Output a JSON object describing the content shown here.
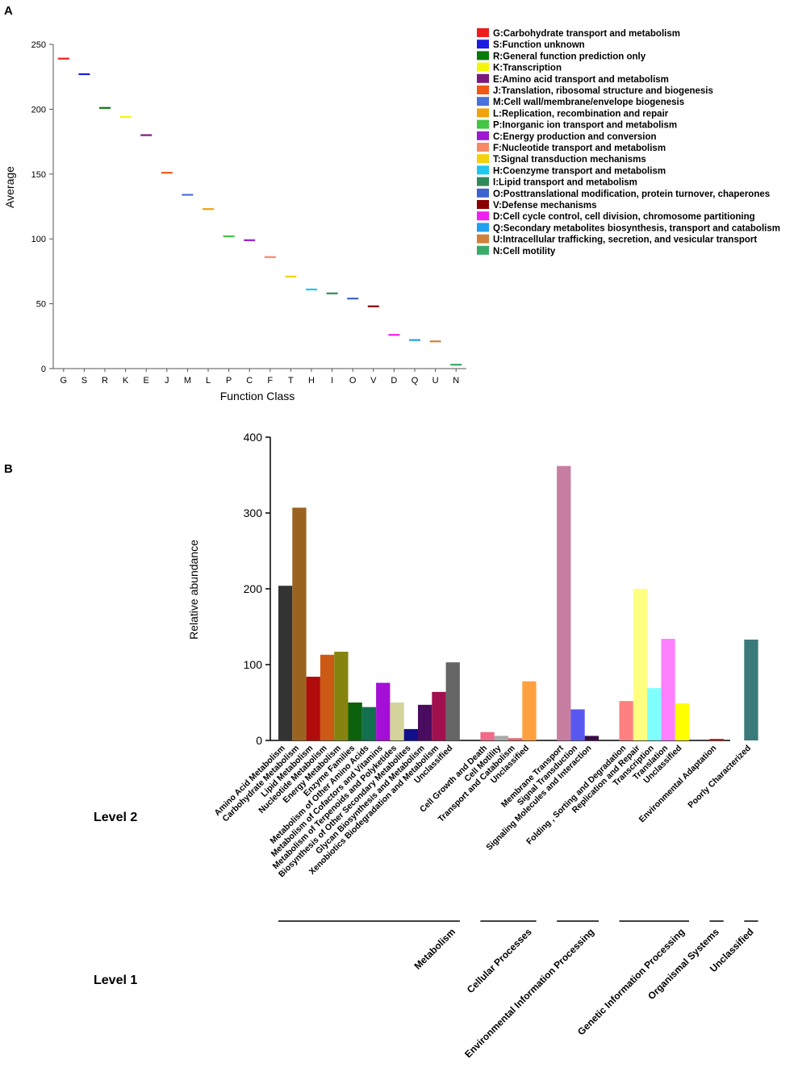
{
  "panel_labels": {
    "a": "A",
    "b": "B"
  },
  "chart_data": [
    {
      "type": "scatter",
      "panel": "A",
      "xlabel": "Function Class",
      "ylabel": "Average",
      "ylim": [
        0,
        250
      ],
      "yticks": [
        0,
        50,
        100,
        150,
        200,
        250
      ],
      "legend_position": "right",
      "categories": [
        "G",
        "S",
        "R",
        "K",
        "E",
        "J",
        "M",
        "L",
        "P",
        "C",
        "F",
        "T",
        "H",
        "I",
        "O",
        "V",
        "D",
        "Q",
        "U",
        "N"
      ],
      "values": [
        239,
        227,
        201,
        194,
        180,
        151,
        134,
        123,
        102,
        99,
        86,
        71,
        61,
        58,
        54,
        48,
        26,
        22,
        21,
        3
      ],
      "colors": [
        "#ee1c1c",
        "#1c1ce0",
        "#0a7a0a",
        "#f5f50a",
        "#7b1a7b",
        "#f05a14",
        "#4a72dc",
        "#f2a20a",
        "#44c444",
        "#9b1ad0",
        "#f58a64",
        "#f2d20a",
        "#20c6ee",
        "#2e8a5a",
        "#3e62d0",
        "#8a0000",
        "#f020f0",
        "#20a0ee",
        "#d0803a",
        "#3aaa6a"
      ],
      "legend": [
        "G:Carbohydrate transport and metabolism",
        "S:Function unknown",
        "R:General function prediction only",
        "K:Transcription",
        "E:Amino acid transport and metabolism",
        "J:Translation, ribosomal structure and biogenesis",
        "M:Cell wall/membrane/envelope biogenesis",
        "L:Replication, recombination and repair",
        "P:Inorganic ion transport and metabolism",
        "C:Energy production and conversion",
        "F:Nucleotide transport and metabolism",
        "T:Signal transduction mechanisms",
        "H:Coenzyme transport and metabolism",
        "I:Lipid transport and metabolism",
        "O:Posttranslational modification, protein turnover, chaperones",
        "V:Defense mechanisms",
        "D:Cell cycle control, cell division, chromosome partitioning",
        "Q:Secondary metabolites biosynthesis, transport and catabolism",
        "U:Intracellular trafficking, secretion, and vesicular transport",
        "N:Cell motility"
      ]
    },
    {
      "type": "bar",
      "panel": "B",
      "ylabel": "Relative abundance",
      "ylim": [
        0,
        400
      ],
      "yticks": [
        0,
        100,
        200,
        300,
        400
      ],
      "level2_label": "Level 2",
      "level1_label": "Level 1",
      "groups": [
        {
          "name": "Metabolism",
          "bars": [
            {
              "label": "Amino Acid Metabolism",
              "value": 204,
              "color": "#333333"
            },
            {
              "label": "Carbohydrate Metabolism",
              "value": 307,
              "color": "#9a6420"
            },
            {
              "label": "Lipid Metabolism",
              "value": 84,
              "color": "#b00c0c"
            },
            {
              "label": "Nucleotide Metabolism",
              "value": 113,
              "color": "#cc5a14"
            },
            {
              "label": "Energy Metabolism",
              "value": 117,
              "color": "#868410"
            },
            {
              "label": "Enzyme Families",
              "value": 50,
              "color": "#0c620c"
            },
            {
              "label": "Metabolism of Other Amino Acids",
              "value": 44,
              "color": "#12704e"
            },
            {
              "label": "Metabolism of Cofactors and Vitamins",
              "value": 76,
              "color": "#a40ed6"
            },
            {
              "label": "Metabolism of Terpenoids and Polyketides",
              "value": 50,
              "color": "#d4d49a"
            },
            {
              "label": "Biosynthesis of Other Secondary Metabolites",
              "value": 15,
              "color": "#10108a"
            },
            {
              "label": "Glycan Biosynthesis and Metabolism",
              "value": 47,
              "color": "#4a0c5e"
            },
            {
              "label": "Xenobiotics Biodegradation and Metabolism",
              "value": 64,
              "color": "#a0104e"
            },
            {
              "label": "Unclassified",
              "value": 103,
              "color": "#666666"
            }
          ]
        },
        {
          "name": "Cellular Processes",
          "bars": [
            {
              "label": "Cell Growth and Death",
              "value": 11,
              "color": "#f06a8a"
            },
            {
              "label": "Cell Motility",
              "value": 6,
              "color": "#aaaaaa"
            },
            {
              "label": "Transport and Catabolism",
              "value": 3,
              "color": "#e86868"
            },
            {
              "label": "Unclassified",
              "value": 78,
              "color": "#ffa040"
            }
          ]
        },
        {
          "name": "Environmental Information Processing",
          "bars": [
            {
              "label": "Membrane Transport",
              "value": 362,
              "color": "#c87ea0"
            },
            {
              "label": "Signal Transduction",
              "value": 41,
              "color": "#5858f0"
            },
            {
              "label": "Signaling Molecules and Interaction",
              "value": 6,
              "color": "#3a0a46"
            }
          ]
        },
        {
          "name": "Genetic Information Processing",
          "bars": [
            {
              "label": "Folding , Sorting and Degradation",
              "value": 52,
              "color": "#ff8080"
            },
            {
              "label": "Replication and Repair",
              "value": 200,
              "color": "#ffff80"
            },
            {
              "label": "Transcription",
              "value": 69,
              "color": "#80ffff"
            },
            {
              "label": "Translation",
              "value": 134,
              "color": "#ff80ff"
            },
            {
              "label": "Unclassified",
              "value": 49,
              "color": "#ffff00"
            }
          ]
        },
        {
          "name": "Organismal Systems",
          "bars": [
            {
              "label": "Environmental Adaptation",
              "value": 2,
              "color": "#cc1010"
            }
          ]
        },
        {
          "name": "Unclassified",
          "bars": [
            {
              "label": "Poorly Characterized",
              "value": 133,
              "color": "#3a7a7a"
            }
          ]
        }
      ]
    }
  ]
}
